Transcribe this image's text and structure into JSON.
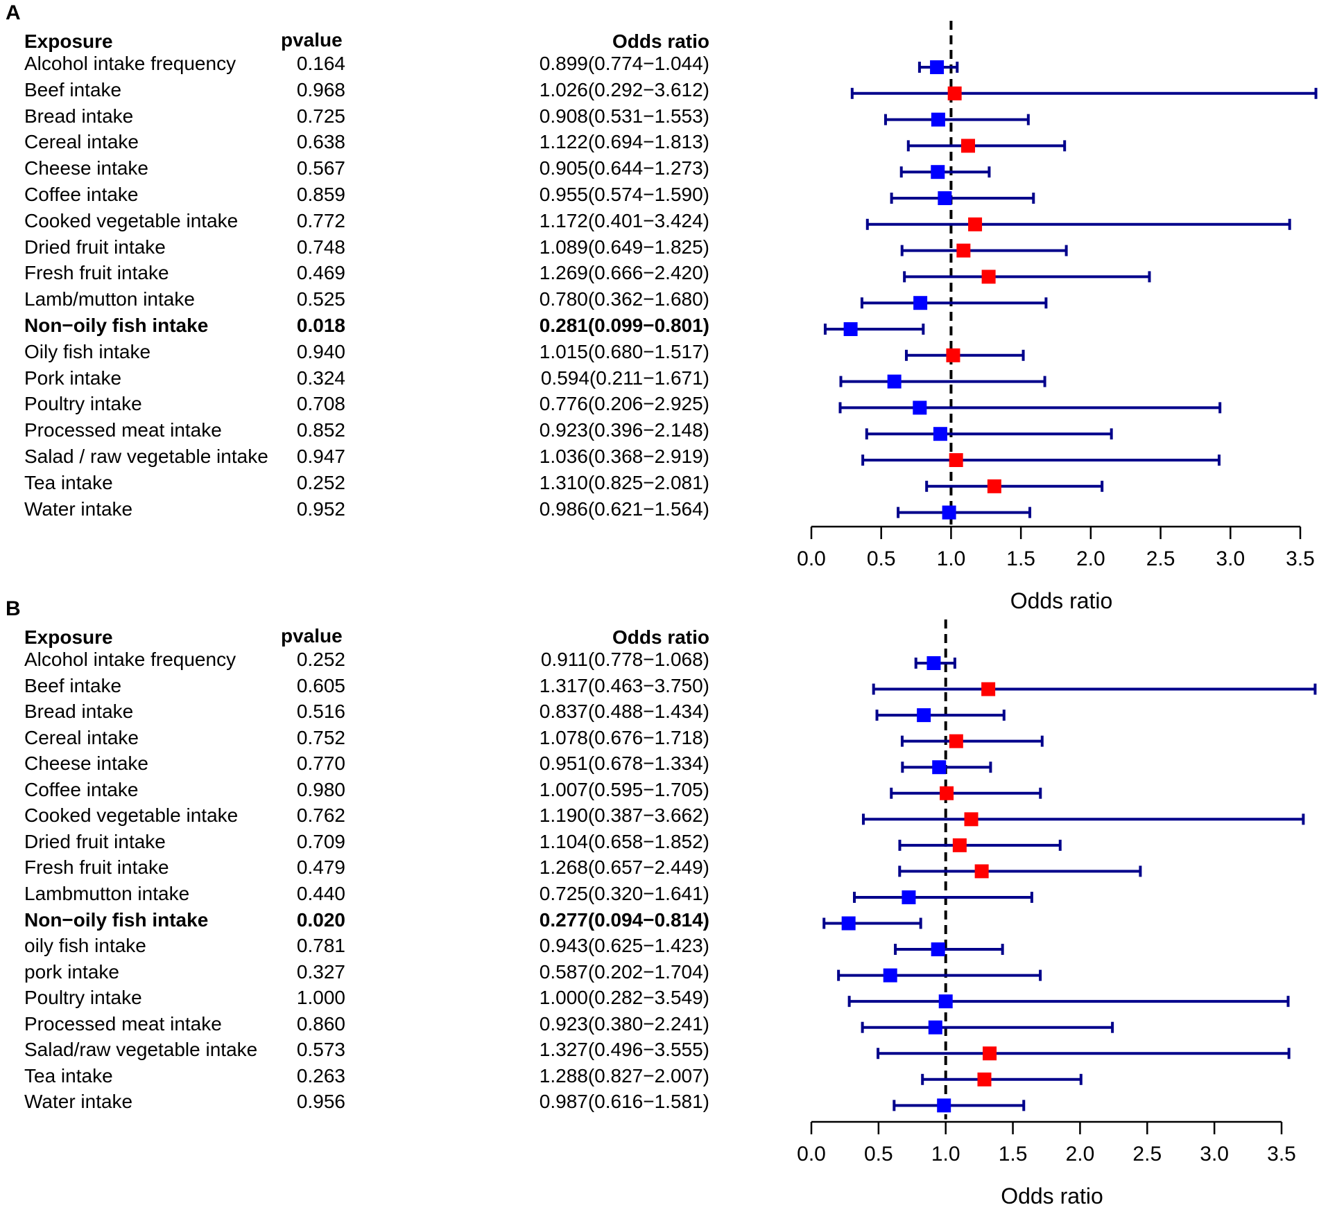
{
  "chart_data": [
    {
      "type": "forest",
      "panel_label": "A",
      "headers": {
        "exposure": "Exposure",
        "pvalue": "pvalue",
        "odds_ratio": "Odds ratio"
      },
      "xlabel": "Odds ratio",
      "xlim": [
        0,
        3.5
      ],
      "xticks": [
        "0.0",
        "0.5",
        "1.0",
        "1.5",
        "2.0",
        "2.5",
        "3.0",
        "3.5"
      ],
      "reference_line": 1.0,
      "colors": {
        "above_one": "#ff0000",
        "below_one": "#0000ff",
        "ci_line": "#00008b"
      },
      "rows": [
        {
          "exposure": "Alcohol intake frequency",
          "pvalue": "0.164",
          "or_text": "0.899(0.774−1.044)",
          "or": 0.899,
          "lo": 0.774,
          "hi": 1.044,
          "bold": false
        },
        {
          "exposure": "Beef intake",
          "pvalue": "0.968",
          "or_text": "1.026(0.292−3.612)",
          "or": 1.026,
          "lo": 0.292,
          "hi": 3.612,
          "bold": false
        },
        {
          "exposure": "Bread intake",
          "pvalue": "0.725",
          "or_text": "0.908(0.531−1.553)",
          "or": 0.908,
          "lo": 0.531,
          "hi": 1.553,
          "bold": false
        },
        {
          "exposure": "Cereal intake",
          "pvalue": "0.638",
          "or_text": "1.122(0.694−1.813)",
          "or": 1.122,
          "lo": 0.694,
          "hi": 1.813,
          "bold": false
        },
        {
          "exposure": "Cheese intake",
          "pvalue": "0.567",
          "or_text": "0.905(0.644−1.273)",
          "or": 0.905,
          "lo": 0.644,
          "hi": 1.273,
          "bold": false
        },
        {
          "exposure": "Coffee intake",
          "pvalue": "0.859",
          "or_text": "0.955(0.574−1.590)",
          "or": 0.955,
          "lo": 0.574,
          "hi": 1.59,
          "bold": false
        },
        {
          "exposure": "Cooked vegetable intake",
          "pvalue": "0.772",
          "or_text": "1.172(0.401−3.424)",
          "or": 1.172,
          "lo": 0.401,
          "hi": 3.424,
          "bold": false
        },
        {
          "exposure": "Dried fruit intake",
          "pvalue": "0.748",
          "or_text": "1.089(0.649−1.825)",
          "or": 1.089,
          "lo": 0.649,
          "hi": 1.825,
          "bold": false
        },
        {
          "exposure": "Fresh fruit intake",
          "pvalue": "0.469",
          "or_text": "1.269(0.666−2.420)",
          "or": 1.269,
          "lo": 0.666,
          "hi": 2.42,
          "bold": false
        },
        {
          "exposure": "Lamb/mutton intake",
          "pvalue": "0.525",
          "or_text": "0.780(0.362−1.680)",
          "or": 0.78,
          "lo": 0.362,
          "hi": 1.68,
          "bold": false
        },
        {
          "exposure": "Non−oily fish intake",
          "pvalue": "0.018",
          "or_text": "0.281(0.099−0.801)",
          "or": 0.281,
          "lo": 0.099,
          "hi": 0.801,
          "bold": true
        },
        {
          "exposure": "Oily fish intake",
          "pvalue": "0.940",
          "or_text": "1.015(0.680−1.517)",
          "or": 1.015,
          "lo": 0.68,
          "hi": 1.517,
          "bold": false
        },
        {
          "exposure": "Pork intake",
          "pvalue": "0.324",
          "or_text": "0.594(0.211−1.671)",
          "or": 0.594,
          "lo": 0.211,
          "hi": 1.671,
          "bold": false
        },
        {
          "exposure": "Poultry intake",
          "pvalue": "0.708",
          "or_text": "0.776(0.206−2.925)",
          "or": 0.776,
          "lo": 0.206,
          "hi": 2.925,
          "bold": false
        },
        {
          "exposure": "Processed meat intake",
          "pvalue": "0.852",
          "or_text": "0.923(0.396−2.148)",
          "or": 0.923,
          "lo": 0.396,
          "hi": 2.148,
          "bold": false
        },
        {
          "exposure": "Salad / raw vegetable intake",
          "pvalue": "0.947",
          "or_text": "1.036(0.368−2.919)",
          "or": 1.036,
          "lo": 0.368,
          "hi": 2.919,
          "bold": false
        },
        {
          "exposure": "Tea intake",
          "pvalue": "0.252",
          "or_text": "1.310(0.825−2.081)",
          "or": 1.31,
          "lo": 0.825,
          "hi": 2.081,
          "bold": false
        },
        {
          "exposure": "Water intake",
          "pvalue": "0.952",
          "or_text": "0.986(0.621−1.564)",
          "or": 0.986,
          "lo": 0.621,
          "hi": 1.564,
          "bold": false
        }
      ]
    },
    {
      "type": "forest",
      "panel_label": "B",
      "headers": {
        "exposure": "Exposure",
        "pvalue": "pvalue",
        "odds_ratio": "Odds ratio"
      },
      "xlabel": "Odds ratio",
      "xlim": [
        0,
        3.5
      ],
      "xticks": [
        "0.0",
        "0.5",
        "1.0",
        "1.5",
        "2.0",
        "2.5",
        "3.0",
        "3.5"
      ],
      "reference_line": 1.0,
      "colors": {
        "above_one": "#ff0000",
        "below_one": "#0000ff",
        "ci_line": "#00008b"
      },
      "rows": [
        {
          "exposure": "Alcohol intake frequency",
          "pvalue": "0.252",
          "or_text": "0.911(0.778−1.068)",
          "or": 0.911,
          "lo": 0.778,
          "hi": 1.068,
          "bold": false
        },
        {
          "exposure": "Beef intake",
          "pvalue": "0.605",
          "or_text": "1.317(0.463−3.750)",
          "or": 1.317,
          "lo": 0.463,
          "hi": 3.75,
          "bold": false
        },
        {
          "exposure": "Bread intake",
          "pvalue": "0.516",
          "or_text": "0.837(0.488−1.434)",
          "or": 0.837,
          "lo": 0.488,
          "hi": 1.434,
          "bold": false
        },
        {
          "exposure": "Cereal intake",
          "pvalue": "0.752",
          "or_text": "1.078(0.676−1.718)",
          "or": 1.078,
          "lo": 0.676,
          "hi": 1.718,
          "bold": false
        },
        {
          "exposure": "Cheese intake",
          "pvalue": "0.770",
          "or_text": "0.951(0.678−1.334)",
          "or": 0.951,
          "lo": 0.678,
          "hi": 1.334,
          "bold": false
        },
        {
          "exposure": "Coffee intake",
          "pvalue": "0.980",
          "or_text": "1.007(0.595−1.705)",
          "or": 1.007,
          "lo": 0.595,
          "hi": 1.705,
          "bold": false
        },
        {
          "exposure": "Cooked vegetable intake",
          "pvalue": "0.762",
          "or_text": "1.190(0.387−3.662)",
          "or": 1.19,
          "lo": 0.387,
          "hi": 3.662,
          "bold": false
        },
        {
          "exposure": "Dried fruit intake",
          "pvalue": "0.709",
          "or_text": "1.104(0.658−1.852)",
          "or": 1.104,
          "lo": 0.658,
          "hi": 1.852,
          "bold": false
        },
        {
          "exposure": "Fresh fruit intake",
          "pvalue": "0.479",
          "or_text": "1.268(0.657−2.449)",
          "or": 1.268,
          "lo": 0.657,
          "hi": 2.449,
          "bold": false
        },
        {
          "exposure": "Lambmutton intake",
          "pvalue": "0.440",
          "or_text": "0.725(0.320−1.641)",
          "or": 0.725,
          "lo": 0.32,
          "hi": 1.641,
          "bold": false
        },
        {
          "exposure": "Non−oily fish intake",
          "pvalue": "0.020",
          "or_text": "0.277(0.094−0.814)",
          "or": 0.277,
          "lo": 0.094,
          "hi": 0.814,
          "bold": true
        },
        {
          "exposure": "oily fish intake",
          "pvalue": "0.781",
          "or_text": "0.943(0.625−1.423)",
          "or": 0.943,
          "lo": 0.625,
          "hi": 1.423,
          "bold": false
        },
        {
          "exposure": "pork intake",
          "pvalue": "0.327",
          "or_text": "0.587(0.202−1.704)",
          "or": 0.587,
          "lo": 0.202,
          "hi": 1.704,
          "bold": false
        },
        {
          "exposure": "Poultry intake",
          "pvalue": "1.000",
          "or_text": "1.000(0.282−3.549)",
          "or": 1.0,
          "lo": 0.282,
          "hi": 3.549,
          "bold": false
        },
        {
          "exposure": "Processed meat intake",
          "pvalue": "0.860",
          "or_text": "0.923(0.380−2.241)",
          "or": 0.923,
          "lo": 0.38,
          "hi": 2.241,
          "bold": false
        },
        {
          "exposure": "Salad/raw vegetable intake",
          "pvalue": "0.573",
          "or_text": "1.327(0.496−3.555)",
          "or": 1.327,
          "lo": 0.496,
          "hi": 3.555,
          "bold": false
        },
        {
          "exposure": "Tea intake",
          "pvalue": "0.263",
          "or_text": "1.288(0.827−2.007)",
          "or": 1.288,
          "lo": 0.827,
          "hi": 2.007,
          "bold": false
        },
        {
          "exposure": "Water intake",
          "pvalue": "0.956",
          "or_text": "0.987(0.616−1.581)",
          "or": 0.987,
          "lo": 0.616,
          "hi": 1.581,
          "bold": false
        }
      ]
    }
  ]
}
